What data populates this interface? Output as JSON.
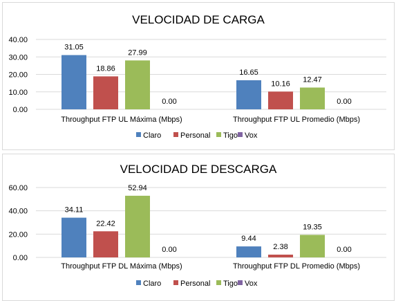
{
  "chart_data": [
    {
      "type": "bar",
      "title": "VELOCIDAD DE CARGA",
      "categories": [
        "Throughput FTP UL Máxima (Mbps)",
        "Throughput FTP UL Promedio (Mbps)"
      ],
      "series": [
        {
          "name": "Claro",
          "values": [
            31.05,
            16.65
          ],
          "labels": [
            "31.05",
            "16.65"
          ]
        },
        {
          "name": "Personal",
          "values": [
            18.86,
            10.16
          ],
          "labels": [
            "18.86",
            "10.16"
          ]
        },
        {
          "name": "Tigo",
          "values": [
            27.99,
            12.47
          ],
          "labels": [
            "27.99",
            "12.47"
          ]
        },
        {
          "name": "Vox",
          "values": [
            0,
            0
          ],
          "labels": [
            "0.00",
            "0.00"
          ]
        }
      ],
      "ylim": [
        0,
        40
      ],
      "yticks": [
        "0.00",
        "10.00",
        "20.00",
        "30.00",
        "40.00"
      ],
      "ytick_values": [
        0,
        10,
        20,
        30,
        40
      ],
      "grid": true,
      "legend": "bottom-center"
    },
    {
      "type": "bar",
      "title": "VELOCIDAD DE DESCARGA",
      "categories": [
        "Throughput FTP DL Máxima (Mbps)",
        "Throughput FTP DL Promedio (Mbps)"
      ],
      "series": [
        {
          "name": "Claro",
          "values": [
            34.11,
            9.44
          ],
          "labels": [
            "34.11",
            "9.44"
          ]
        },
        {
          "name": "Personal",
          "values": [
            22.42,
            2.38
          ],
          "labels": [
            "22.42",
            "2.38"
          ]
        },
        {
          "name": "Tigo",
          "values": [
            52.94,
            19.35
          ],
          "labels": [
            "52.94",
            "19.35"
          ]
        },
        {
          "name": "Vox",
          "values": [
            0,
            0
          ],
          "labels": [
            "0.00",
            "0.00"
          ]
        }
      ],
      "ylim": [
        0,
        60
      ],
      "yticks": [
        "0.00",
        "20.00",
        "40.00",
        "60.00"
      ],
      "ytick_values": [
        0,
        20,
        40,
        60
      ],
      "grid": true,
      "legend": "bottom-center"
    }
  ],
  "colors": {
    "Claro": "#4f81bd",
    "Personal": "#c0504d",
    "Tigo": "#9bbb59",
    "Vox": "#8064a2",
    "grid": "#d9d9d9"
  }
}
